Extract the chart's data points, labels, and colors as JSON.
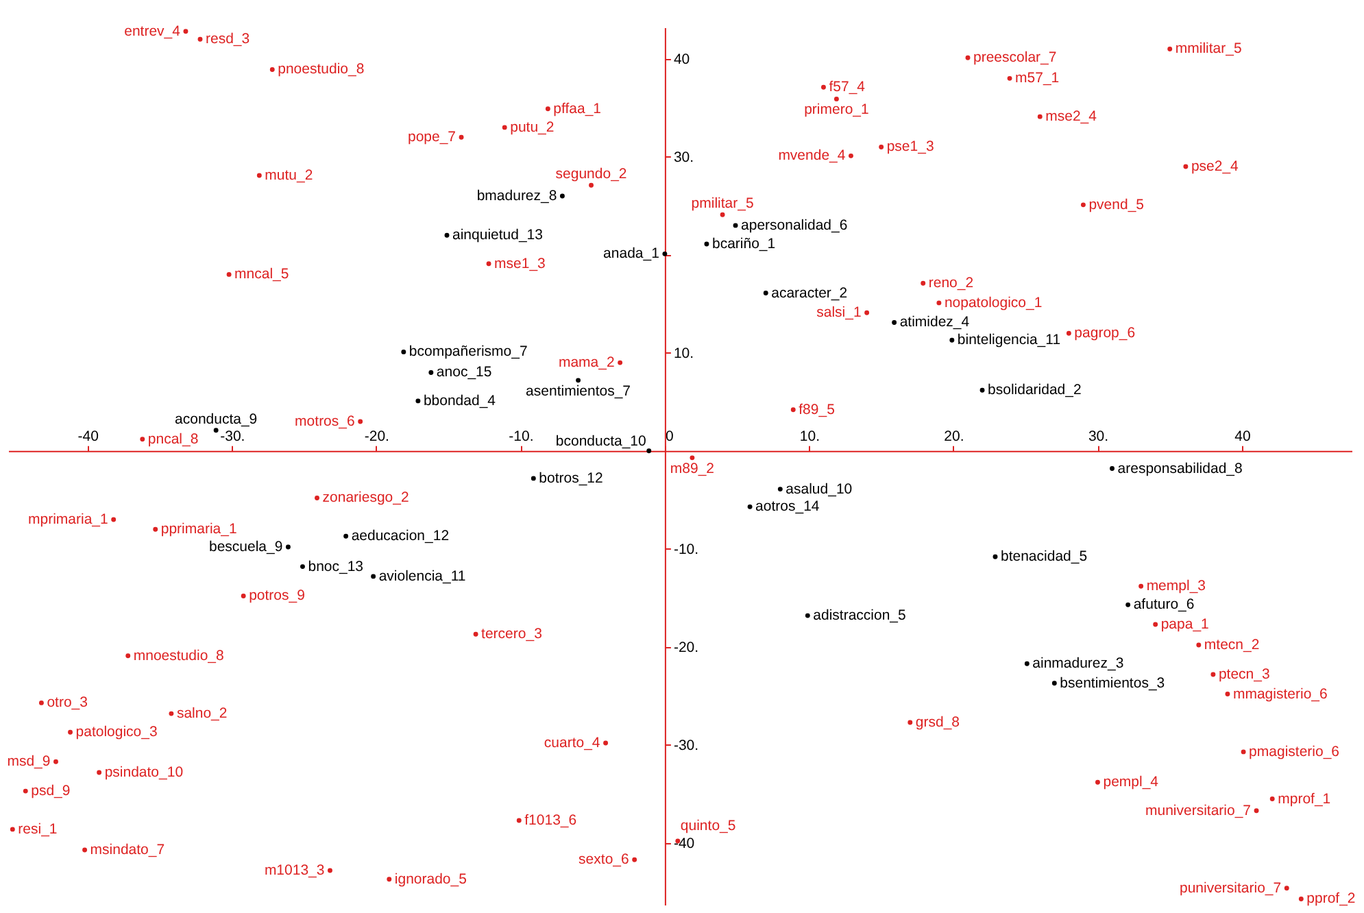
{
  "chart_data": {
    "type": "scatter",
    "marker": "circle",
    "xlim": [
      -45.5,
      47.6
    ],
    "ylim": [
      -46.3,
      43.2
    ],
    "xticks": [
      -40,
      {
        "value": -30,
        "label": "-30."
      },
      {
        "value": -20,
        "label": "-20."
      },
      {
        "value": -10,
        "label": "-10."
      },
      0,
      {
        "value": 10,
        "label": "10."
      },
      {
        "value": 20,
        "label": "20."
      },
      {
        "value": 30,
        "label": "30."
      },
      40
    ],
    "yticks": [
      -40,
      {
        "value": -30,
        "label": "-30."
      },
      {
        "value": -20,
        "label": "-20."
      },
      {
        "value": -10,
        "label": "-10."
      },
      {
        "value": 10,
        "label": "10."
      },
      {
        "value": 20,
        "label": null
      },
      {
        "value": 30,
        "label": "30."
      },
      40
    ],
    "series": [
      {
        "name": "entrev_4",
        "color": "#dd2222",
        "x": [
          -33.2
        ],
        "values": [
          42.8
        ]
      },
      {
        "name": "resd_3",
        "color": "#dd2222",
        "x": [
          -32.2
        ],
        "values": [
          42.0
        ]
      },
      {
        "name": "pnoestudio_8",
        "color": "#dd2222",
        "x": [
          -27.2
        ],
        "values": [
          38.9
        ]
      },
      {
        "name": "pffaa_1",
        "color": "#dd2222",
        "x": [
          -8.1
        ],
        "values": [
          34.9
        ]
      },
      {
        "name": "putu_2",
        "color": "#dd2222",
        "x": [
          -11.1
        ],
        "values": [
          33.0
        ]
      },
      {
        "name": "pope_7",
        "color": "#dd2222",
        "x": [
          -14.1
        ],
        "values": [
          32.0
        ]
      },
      {
        "name": "mutu_2",
        "color": "#dd2222",
        "x": [
          -28.1
        ],
        "values": [
          28.1
        ]
      },
      {
        "name": "segundo_2",
        "color": "#dd2222",
        "x": [
          -5.1
        ],
        "values": [
          27.1
        ]
      },
      {
        "name": "mncal_5",
        "color": "#dd2222",
        "x": [
          -30.2
        ],
        "values": [
          18.0
        ]
      },
      {
        "name": "mse1_3",
        "color": "#dd2222",
        "x": [
          -12.2
        ],
        "values": [
          19.1
        ]
      },
      {
        "name": "f57_4",
        "color": "#dd2222",
        "x": [
          11.0
        ],
        "values": [
          37.1
        ]
      },
      {
        "name": "primero_1",
        "color": "#dd2222",
        "x": [
          11.9
        ],
        "values": [
          35.9
        ]
      },
      {
        "name": "pse1_3",
        "color": "#dd2222",
        "x": [
          15.0
        ],
        "values": [
          31.0
        ]
      },
      {
        "name": "mvende_4",
        "color": "#dd2222",
        "x": [
          12.9
        ],
        "values": [
          30.1
        ]
      },
      {
        "name": "preescolar_7",
        "color": "#dd2222",
        "x": [
          21.0
        ],
        "values": [
          40.1
        ]
      },
      {
        "name": "m57_1",
        "color": "#dd2222",
        "x": [
          23.9
        ],
        "values": [
          38.0
        ]
      },
      {
        "name": "mse2_4",
        "color": "#dd2222",
        "x": [
          26.0
        ],
        "values": [
          34.1
        ]
      },
      {
        "name": "mmilitar_5",
        "color": "#dd2222",
        "x": [
          35.0
        ],
        "values": [
          41.0
        ]
      },
      {
        "name": "pse2_4",
        "color": "#dd2222",
        "x": [
          36.1
        ],
        "values": [
          29.0
        ]
      },
      {
        "name": "pvend_5",
        "color": "#dd2222",
        "x": [
          29.0
        ],
        "values": [
          25.1
        ]
      },
      {
        "name": "pmilitar_5",
        "color": "#dd2222",
        "x": [
          4.0
        ],
        "values": [
          24.1
        ]
      },
      {
        "name": "reno_2",
        "color": "#dd2222",
        "x": [
          17.9
        ],
        "values": [
          17.1
        ]
      },
      {
        "name": "nopatologico_1",
        "color": "#dd2222",
        "x": [
          19.0
        ],
        "values": [
          15.1
        ]
      },
      {
        "name": "salsi_1",
        "color": "#dd2222",
        "x": [
          14.0
        ],
        "values": [
          14.1
        ]
      },
      {
        "name": "pagrop_6",
        "color": "#dd2222",
        "x": [
          28.0
        ],
        "values": [
          12.0
        ]
      },
      {
        "name": "mama_2",
        "color": "#dd2222",
        "x": [
          -3.1
        ],
        "values": [
          9.0
        ]
      },
      {
        "name": "f89_5",
        "color": "#dd2222",
        "x": [
          8.9
        ],
        "values": [
          4.2
        ]
      },
      {
        "name": "motros_6",
        "color": "#dd2222",
        "x": [
          -21.1
        ],
        "values": [
          3.0
        ]
      },
      {
        "name": "pncal_8",
        "color": "#dd2222",
        "x": [
          -36.2
        ],
        "values": [
          1.2
        ]
      },
      {
        "name": "m89_2",
        "color": "#dd2222",
        "x": [
          1.9
        ],
        "values": [
          -0.7
        ]
      },
      {
        "name": "zonariesgo_2",
        "color": "#dd2222",
        "x": [
          -24.1
        ],
        "values": [
          -4.8
        ]
      },
      {
        "name": "mprimaria_1",
        "color": "#dd2222",
        "x": [
          -38.2
        ],
        "values": [
          -7.0
        ]
      },
      {
        "name": "pprimaria_1",
        "color": "#dd2222",
        "x": [
          -35.3
        ],
        "values": [
          -8.0
        ]
      },
      {
        "name": "potros_9",
        "color": "#dd2222",
        "x": [
          -29.2
        ],
        "values": [
          -14.8
        ]
      },
      {
        "name": "tercero_3",
        "color": "#dd2222",
        "x": [
          -13.1
        ],
        "values": [
          -18.7
        ]
      },
      {
        "name": "mnoestudio_8",
        "color": "#dd2222",
        "x": [
          -37.2
        ],
        "values": [
          -20.9
        ]
      },
      {
        "name": "otro_3",
        "color": "#dd2222",
        "x": [
          -43.2
        ],
        "values": [
          -25.7
        ]
      },
      {
        "name": "salno_2",
        "color": "#dd2222",
        "x": [
          -34.2
        ],
        "values": [
          -26.8
        ]
      },
      {
        "name": "patologico_3",
        "color": "#dd2222",
        "x": [
          -41.2
        ],
        "values": [
          -28.7
        ]
      },
      {
        "name": "msd_9",
        "color": "#dd2222",
        "x": [
          -42.2
        ],
        "values": [
          -31.7
        ]
      },
      {
        "name": "psindato_10",
        "color": "#dd2222",
        "x": [
          -39.2
        ],
        "values": [
          -32.8
        ]
      },
      {
        "name": "psd_9",
        "color": "#dd2222",
        "x": [
          -44.3
        ],
        "values": [
          -34.7
        ]
      },
      {
        "name": "resi_1",
        "color": "#dd2222",
        "x": [
          -45.2
        ],
        "values": [
          -38.6
        ]
      },
      {
        "name": "msindato_7",
        "color": "#dd2222",
        "x": [
          -40.2
        ],
        "values": [
          -40.7
        ]
      },
      {
        "name": "m1013_3",
        "color": "#dd2222",
        "x": [
          -23.2
        ],
        "values": [
          -42.8
        ]
      },
      {
        "name": "ignorado_5",
        "color": "#dd2222",
        "x": [
          -19.1
        ],
        "values": [
          -43.7
        ]
      },
      {
        "name": "f1013_6",
        "color": "#dd2222",
        "x": [
          -10.1
        ],
        "values": [
          -37.7
        ]
      },
      {
        "name": "cuarto_4",
        "color": "#dd2222",
        "x": [
          -4.1
        ],
        "values": [
          -29.8
        ]
      },
      {
        "name": "quinto_5",
        "color": "#dd2222",
        "x": [
          0.9
        ],
        "values": [
          -39.8
        ]
      },
      {
        "name": "sexto_6",
        "color": "#dd2222",
        "x": [
          -2.1
        ],
        "values": [
          -41.7
        ]
      },
      {
        "name": "grsd_8",
        "color": "#dd2222",
        "x": [
          17.0
        ],
        "values": [
          -27.7
        ]
      },
      {
        "name": "mempl_3",
        "color": "#dd2222",
        "x": [
          33.0
        ],
        "values": [
          -13.8
        ]
      },
      {
        "name": "papa_1",
        "color": "#dd2222",
        "x": [
          34.0
        ],
        "values": [
          -17.7
        ]
      },
      {
        "name": "mtecn_2",
        "color": "#dd2222",
        "x": [
          37.0
        ],
        "values": [
          -19.8
        ]
      },
      {
        "name": "ptecn_3",
        "color": "#dd2222",
        "x": [
          38.0
        ],
        "values": [
          -22.8
        ]
      },
      {
        "name": "mmagisterio_6",
        "color": "#dd2222",
        "x": [
          39.0
        ],
        "values": [
          -24.8
        ]
      },
      {
        "name": "pmagisterio_6",
        "color": "#dd2222",
        "x": [
          40.1
        ],
        "values": [
          -30.7
        ]
      },
      {
        "name": "pempl_4",
        "color": "#dd2222",
        "x": [
          30.0
        ],
        "values": [
          -33.8
        ]
      },
      {
        "name": "mprof_1",
        "color": "#dd2222",
        "x": [
          42.1
        ],
        "values": [
          -35.5
        ]
      },
      {
        "name": "muniversitario_7",
        "color": "#dd2222",
        "x": [
          41.0
        ],
        "values": [
          -36.7
        ]
      },
      {
        "name": "puniversitario_7",
        "color": "#dd2222",
        "x": [
          43.1
        ],
        "values": [
          -44.6
        ]
      },
      {
        "name": "pprof_2",
        "color": "#dd2222",
        "x": [
          44.1
        ],
        "values": [
          -45.7
        ]
      },
      {
        "name": "bmadurez_8",
        "color": "#000000",
        "x": [
          -7.1
        ],
        "values": [
          26.0
        ]
      },
      {
        "name": "ainquietud_13",
        "color": "#000000",
        "x": [
          -15.1
        ],
        "values": [
          22.0
        ]
      },
      {
        "name": "apersonalidad_6",
        "color": "#000000",
        "x": [
          4.9
        ],
        "values": [
          23.0
        ]
      },
      {
        "name": "bcariño_1",
        "color": "#000000",
        "x": [
          2.9
        ],
        "values": [
          21.1
        ]
      },
      {
        "name": "anada_1",
        "color": "#000000",
        "x": [
          0.0
        ],
        "values": [
          20.1
        ]
      },
      {
        "name": "acaracter_2",
        "color": "#000000",
        "x": [
          7.0
        ],
        "values": [
          16.1
        ]
      },
      {
        "name": "atimidez_4",
        "color": "#000000",
        "x": [
          15.9
        ],
        "values": [
          13.1
        ]
      },
      {
        "name": "binteligencia_11",
        "color": "#000000",
        "x": [
          19.9
        ],
        "values": [
          11.3
        ]
      },
      {
        "name": "bsolidaridad_2",
        "color": "#000000",
        "x": [
          22.0
        ],
        "values": [
          6.2
        ]
      },
      {
        "name": "bcompañerismo_7",
        "color": "#000000",
        "x": [
          -18.1
        ],
        "values": [
          10.1
        ]
      },
      {
        "name": "anoc_15",
        "color": "#000000",
        "x": [
          -16.2
        ],
        "values": [
          8.0
        ]
      },
      {
        "name": "bbondad_4",
        "color": "#000000",
        "x": [
          -17.1
        ],
        "values": [
          5.1
        ]
      },
      {
        "name": "asentimientos_7",
        "color": "#000000",
        "x": [
          -6.0
        ],
        "values": [
          7.2
        ]
      },
      {
        "name": "aconducta_9",
        "color": "#000000",
        "x": [
          -31.1
        ],
        "values": [
          2.1
        ]
      },
      {
        "name": "bconducta_10",
        "color": "#000000",
        "x": [
          -1.1
        ],
        "values": [
          0.0
        ]
      },
      {
        "name": "botros_12",
        "color": "#000000",
        "x": [
          -9.1
        ],
        "values": [
          -2.8
        ]
      },
      {
        "name": "aresponsabilidad_8",
        "color": "#000000",
        "x": [
          31.0
        ],
        "values": [
          -1.8
        ]
      },
      {
        "name": "asalud_10",
        "color": "#000000",
        "x": [
          8.0
        ],
        "values": [
          -3.9
        ]
      },
      {
        "name": "aotros_14",
        "color": "#000000",
        "x": [
          5.9
        ],
        "values": [
          -5.7
        ]
      },
      {
        "name": "aeducacion_12",
        "color": "#000000",
        "x": [
          -22.1
        ],
        "values": [
          -8.7
        ]
      },
      {
        "name": "bescuela_9",
        "color": "#000000",
        "x": [
          -26.1
        ],
        "values": [
          -9.8
        ]
      },
      {
        "name": "bnoc_13",
        "color": "#000000",
        "x": [
          -25.1
        ],
        "values": [
          -11.8
        ]
      },
      {
        "name": "aviolencia_11",
        "color": "#000000",
        "x": [
          -20.2
        ],
        "values": [
          -12.8
        ]
      },
      {
        "name": "btenacidad_5",
        "color": "#000000",
        "x": [
          22.9
        ],
        "values": [
          -10.8
        ]
      },
      {
        "name": "afuturo_6",
        "color": "#000000",
        "x": [
          32.1
        ],
        "values": [
          -15.7
        ]
      },
      {
        "name": "adistraccion_5",
        "color": "#000000",
        "x": [
          9.9
        ],
        "values": [
          -16.8
        ]
      },
      {
        "name": "ainmadurez_3",
        "color": "#000000",
        "x": [
          25.1
        ],
        "values": [
          -21.7
        ]
      },
      {
        "name": "bsentimientos_3",
        "color": "#000000",
        "x": [
          27.0
        ],
        "values": [
          -23.7
        ]
      }
    ]
  }
}
